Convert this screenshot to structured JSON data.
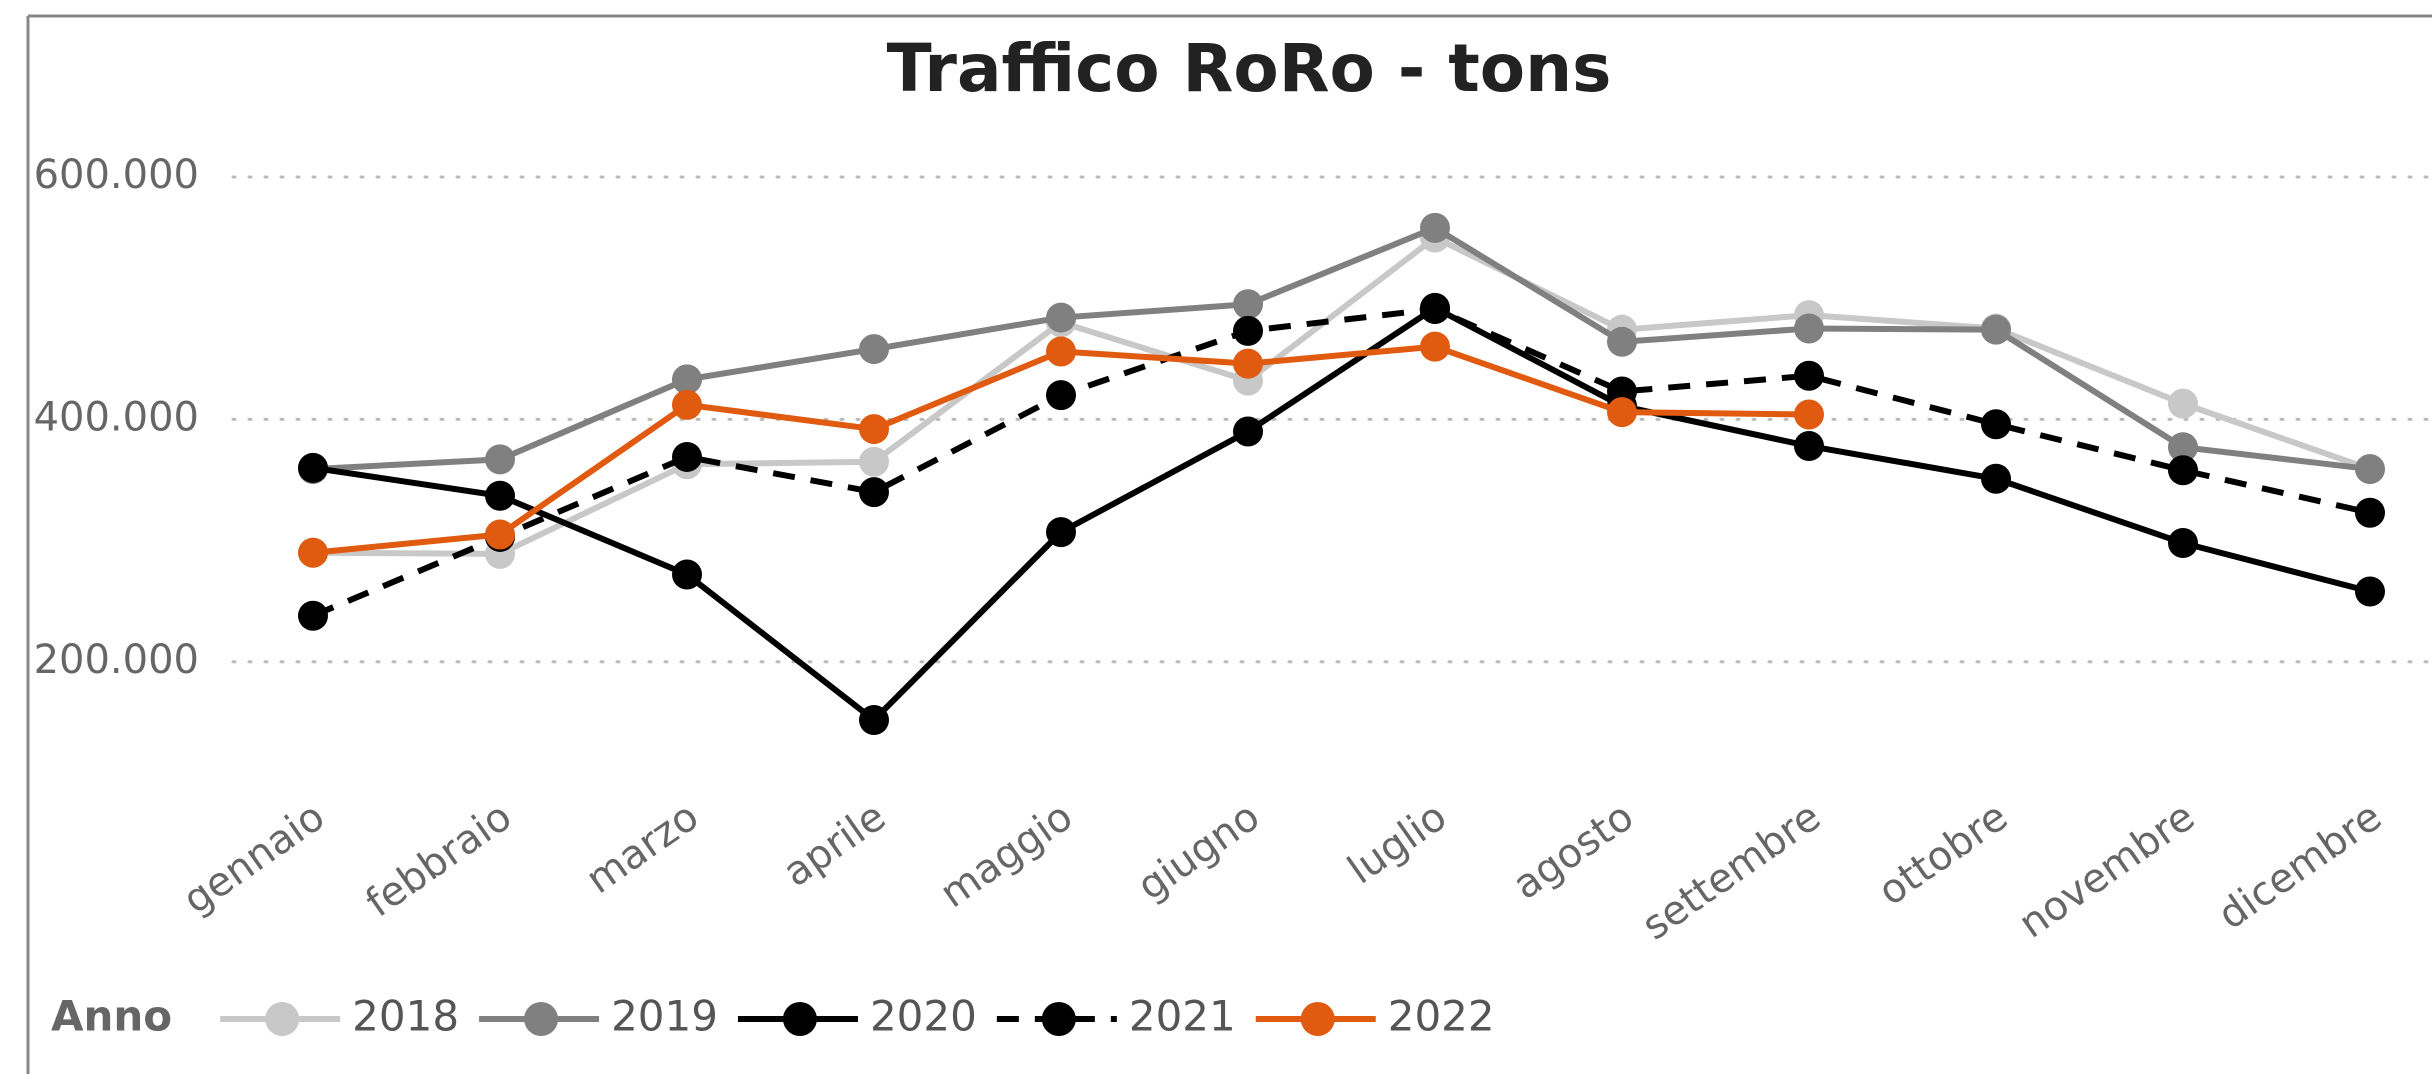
{
  "chart_data": {
    "type": "line",
    "title": "Traffico RoRo - tons",
    "categories": [
      "gennaio",
      "febbraio",
      "marzo",
      "aprile",
      "maggio",
      "giugno",
      "luglio",
      "agosto",
      "settembre",
      "ottobre",
      "novembre",
      "dicembre"
    ],
    "legend_title": "Anno",
    "legend": "bottom-left",
    "grid": true,
    "ylim": [
      100000,
      630000
    ],
    "yticks": [
      {
        "value": 200000,
        "label": "200.000"
      },
      {
        "value": 400000,
        "label": "400.000"
      },
      {
        "value": 600000,
        "label": "600.000"
      }
    ],
    "series": [
      {
        "name": "2018",
        "color": "#c8c8c8",
        "line_style": "solid",
        "values": [
          290000,
          289000,
          363000,
          365000,
          480000,
          432000,
          550000,
          474000,
          486000,
          475000,
          413000,
          359000
        ]
      },
      {
        "name": "2019",
        "color": "#808080",
        "line_style": "solid",
        "values": [
          359000,
          367000,
          433000,
          458000,
          484000,
          495000,
          558000,
          464000,
          475000,
          474000,
          377000,
          359000
        ]
      },
      {
        "name": "2020",
        "color": "#000000",
        "line_style": "solid",
        "values": [
          360000,
          337000,
          272000,
          152000,
          307000,
          390000,
          492000,
          411000,
          378000,
          351000,
          298000,
          258000
        ]
      },
      {
        "name": "2021",
        "color": "#000000",
        "line_style": "dashed",
        "values": [
          238000,
          303000,
          369000,
          340000,
          420000,
          473000,
          491000,
          423000,
          436000,
          396000,
          358000,
          323000
        ]
      },
      {
        "name": "2022",
        "color": "#e05a10",
        "line_style": "solid",
        "values": [
          290000,
          305000,
          412000,
          392000,
          456000,
          446000,
          460000,
          406000,
          404000,
          null,
          null,
          null
        ]
      }
    ]
  }
}
